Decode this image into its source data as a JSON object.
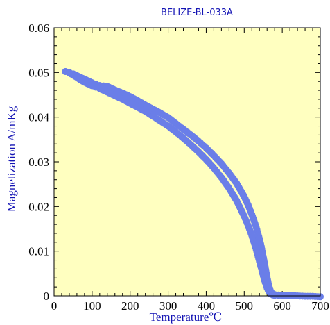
{
  "chart_data": {
    "type": "scatter",
    "title": "BELIZE-BL-033A",
    "xlabel": "Temperature℃",
    "ylabel": "Magnetization A/mKg",
    "xlim": [
      0,
      700
    ],
    "ylim": [
      0,
      0.06
    ],
    "x_ticks": [
      "0",
      "100",
      "200",
      "300",
      "400",
      "500",
      "600",
      "700"
    ],
    "y_ticks": [
      "0",
      "0.01",
      "0.02",
      "0.03",
      "0.04",
      "0.05",
      "0.06"
    ],
    "grid": false,
    "plot_background": "#ffffc0",
    "marker_color": "#6a7ee8",
    "series": [
      {
        "x": [
          30,
          40,
          50,
          60,
          70,
          80,
          90,
          100,
          110,
          120,
          130,
          140,
          160,
          180,
          200,
          220,
          240,
          260,
          280,
          300,
          320,
          340,
          360,
          380,
          400,
          420,
          440,
          460,
          480,
          500,
          510,
          520,
          530,
          540,
          545,
          550,
          555,
          560,
          565,
          570,
          575,
          580,
          590,
          600,
          620,
          640,
          660,
          680,
          700
        ],
        "values": [
          0.0502,
          0.05,
          0.0497,
          0.0493,
          0.0489,
          0.0485,
          0.0481,
          0.0477,
          0.0474,
          0.0471,
          0.047,
          0.0469,
          0.0461,
          0.0454,
          0.0446,
          0.0437,
          0.0427,
          0.0418,
          0.0409,
          0.0399,
          0.0386,
          0.0373,
          0.036,
          0.0346,
          0.0331,
          0.0314,
          0.0296,
          0.0275,
          0.0252,
          0.0222,
          0.0204,
          0.0182,
          0.0158,
          0.0128,
          0.011,
          0.0088,
          0.0065,
          0.0042,
          0.0022,
          0.001,
          0.0005,
          0.0003,
          0.0002,
          0.0001,
          0.0001,
          0.0,
          -0.0001,
          -0.0001,
          -0.0002
        ]
      },
      {
        "x": [
          30,
          40,
          50,
          60,
          70,
          80,
          90,
          100,
          110,
          120,
          130,
          140,
          160,
          180,
          200,
          220,
          240,
          260,
          280,
          300,
          320,
          340,
          360,
          380,
          400,
          420,
          440,
          460,
          480,
          500,
          510,
          520,
          530,
          540,
          545,
          550,
          555,
          560,
          565,
          570,
          575,
          580,
          590,
          600
        ],
        "values": [
          0.0502,
          0.0499,
          0.0494,
          0.0489,
          0.0483,
          0.0478,
          0.0474,
          0.047,
          0.0467,
          0.0464,
          0.046,
          0.0456,
          0.0448,
          0.044,
          0.0431,
          0.0422,
          0.0413,
          0.0402,
          0.0391,
          0.038,
          0.0367,
          0.0353,
          0.0338,
          0.0322,
          0.0305,
          0.0286,
          0.0265,
          0.0241,
          0.0213,
          0.0178,
          0.0158,
          0.0135,
          0.0108,
          0.0077,
          0.0061,
          0.0045,
          0.003,
          0.0018,
          0.0009,
          0.0004,
          0.0002,
          0.0001,
          0.0001,
          0.0
        ]
      }
    ]
  }
}
